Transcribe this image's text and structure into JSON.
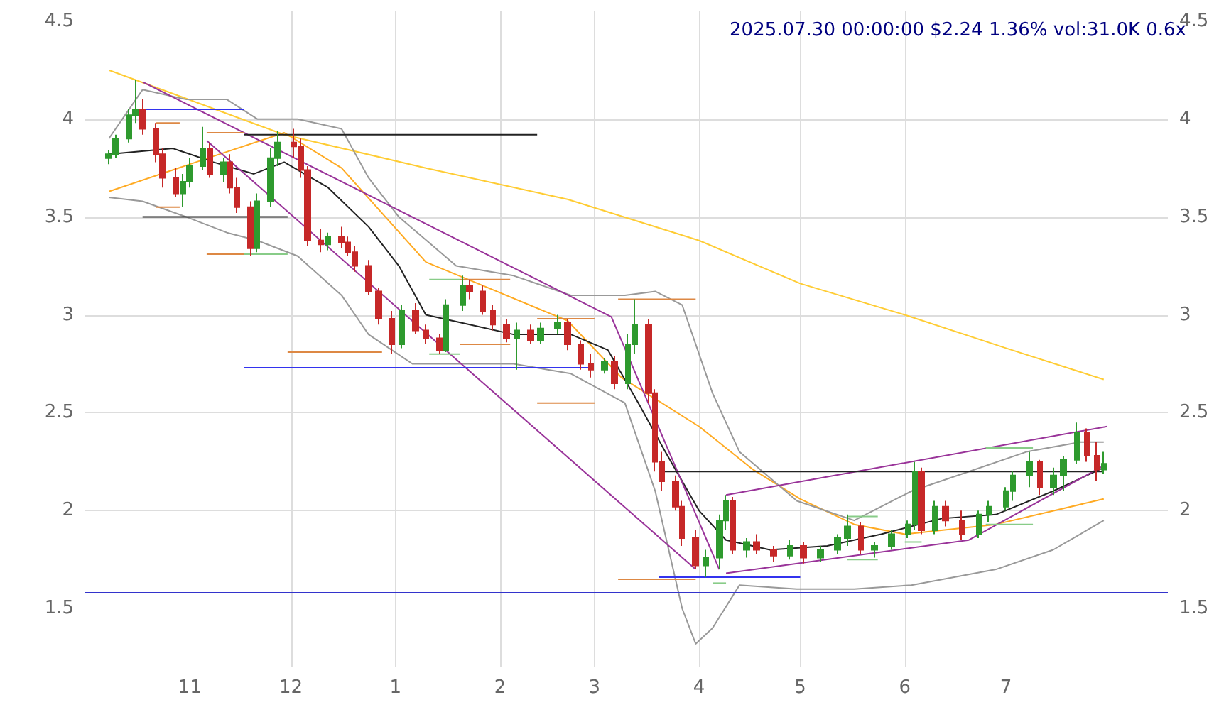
{
  "chart_data": {
    "type": "candlestick",
    "title": "2025.07.30 00:00:00 $2.24 1.36% vol:31.0K 0.6x",
    "grid": true,
    "marker": "none",
    "xlim": [
      "2024-10-01",
      "2025-08-18"
    ],
    "xticks": [
      {
        "value": "2024-11-01",
        "label": "11"
      },
      {
        "value": "2024-12-01",
        "label": "12"
      },
      {
        "value": "2025-01-01",
        "label": "1"
      },
      {
        "value": "2025-02-01",
        "label": "2"
      },
      {
        "value": "2025-03-01",
        "label": "3"
      },
      {
        "value": "2025-04-01",
        "label": "4"
      },
      {
        "value": "2025-05-01",
        "label": "5"
      },
      {
        "value": "2025-06-01",
        "label": "6"
      },
      {
        "value": "2025-07-01",
        "label": "7"
      }
    ],
    "ylim": [
      1.2,
      4.55
    ],
    "yticks": [
      1.5,
      2.0,
      2.5,
      3.0,
      3.5,
      4.0,
      4.5
    ],
    "y2lim": [
      1.2,
      4.55
    ],
    "y2ticks": [
      1.5,
      2.0,
      2.5,
      3.0,
      3.5,
      4.0,
      4.5
    ],
    "ref_lines": [
      {
        "axis": "y",
        "value": 1.58,
        "color": "#3333cc"
      }
    ],
    "series": [
      {
        "type": "line",
        "color": "#ffcc33",
        "x": [
          "2024-10-08",
          "2024-11-29",
          "2025-01-10",
          "2025-02-21",
          "2025-04-01",
          "2025-05-01",
          "2025-06-01",
          "2025-07-01",
          "2025-07-30"
        ],
        "values": [
          4.25,
          3.92,
          3.75,
          3.59,
          3.38,
          3.16,
          3.0,
          2.83,
          2.67
        ]
      },
      {
        "type": "line",
        "color": "#ffaa22",
        "x": [
          "2024-10-08",
          "2024-11-08",
          "2024-11-29",
          "2024-12-16",
          "2025-01-10",
          "2025-01-31",
          "2025-02-21",
          "2025-03-09",
          "2025-04-01",
          "2025-04-17",
          "2025-05-01",
          "2025-05-17",
          "2025-06-01",
          "2025-06-28",
          "2025-07-30"
        ],
        "values": [
          3.63,
          3.81,
          3.93,
          3.75,
          3.27,
          3.12,
          2.97,
          2.68,
          2.43,
          2.21,
          2.06,
          1.93,
          1.88,
          1.93,
          2.06
        ]
      },
      {
        "type": "line",
        "color": "#999999",
        "x": [
          "2024-10-08",
          "2024-10-18",
          "2024-10-31",
          "2024-11-12",
          "2024-11-21",
          "2024-12-03",
          "2024-12-16",
          "2024-12-24",
          "2025-01-02",
          "2025-01-19",
          "2025-02-05",
          "2025-02-22",
          "2025-03-10",
          "2025-03-19",
          "2025-03-27",
          "2025-04-05",
          "2025-04-13",
          "2025-04-30",
          "2025-05-17",
          "2025-06-03",
          "2025-06-20",
          "2025-07-07",
          "2025-07-23",
          "2025-07-30"
        ],
        "values": [
          3.9,
          4.15,
          4.1,
          4.1,
          4.0,
          4.0,
          3.95,
          3.7,
          3.5,
          3.25,
          3.2,
          3.1,
          3.1,
          3.12,
          3.05,
          2.6,
          2.3,
          2.05,
          1.95,
          2.1,
          2.2,
          2.3,
          2.35,
          2.35
        ]
      },
      {
        "type": "line",
        "color": "#999999",
        "x": [
          "2024-10-08",
          "2024-10-18",
          "2024-10-31",
          "2024-11-12",
          "2024-11-21",
          "2024-12-03",
          "2024-12-16",
          "2024-12-24",
          "2025-01-06",
          "2025-01-19",
          "2025-02-05",
          "2025-02-22",
          "2025-03-10",
          "2025-03-19",
          "2025-03-27",
          "2025-03-31",
          "2025-04-05",
          "2025-04-13",
          "2025-04-30",
          "2025-05-17",
          "2025-06-03",
          "2025-06-28",
          "2025-07-15",
          "2025-07-30"
        ],
        "values": [
          3.6,
          3.58,
          3.5,
          3.42,
          3.38,
          3.3,
          3.1,
          2.9,
          2.75,
          2.75,
          2.75,
          2.7,
          2.55,
          2.1,
          1.5,
          1.32,
          1.4,
          1.62,
          1.6,
          1.6,
          1.62,
          1.7,
          1.8,
          1.95
        ]
      },
      {
        "type": "line",
        "color": "#222222",
        "x": [
          "2024-10-08",
          "2024-10-27",
          "2024-11-08",
          "2024-11-20",
          "2024-11-29",
          "2024-12-12",
          "2024-12-24",
          "2025-01-02",
          "2025-01-10",
          "2025-01-23",
          "2025-02-05",
          "2025-02-22",
          "2025-03-05",
          "2025-03-14",
          "2025-03-22",
          "2025-04-01",
          "2025-04-09",
          "2025-04-22",
          "2025-05-09",
          "2025-05-25",
          "2025-06-12",
          "2025-06-28",
          "2025-07-15",
          "2025-07-30"
        ],
        "values": [
          3.82,
          3.85,
          3.78,
          3.72,
          3.78,
          3.65,
          3.45,
          3.25,
          3.0,
          2.95,
          2.9,
          2.9,
          2.82,
          2.55,
          2.3,
          2.0,
          1.85,
          1.8,
          1.82,
          1.88,
          1.96,
          1.98,
          2.1,
          2.22
        ]
      },
      {
        "type": "line",
        "color": "#993399",
        "x": [
          "2024-10-18",
          "2025-03-06"
        ],
        "values": [
          4.19,
          2.99
        ]
      },
      {
        "type": "line",
        "color": "#993399",
        "x": [
          "2024-11-06",
          "2025-03-31"
        ],
        "values": [
          3.89,
          1.7
        ]
      },
      {
        "type": "line",
        "color": "#993399",
        "x": [
          "2025-03-06",
          "2025-04-07"
        ],
        "values": [
          2.99,
          1.7
        ]
      },
      {
        "type": "line",
        "color": "#993399",
        "x": [
          "2025-04-09",
          "2025-07-31"
        ],
        "values": [
          2.08,
          2.43
        ]
      },
      {
        "type": "line",
        "color": "#993399",
        "x": [
          "2025-04-09",
          "2025-06-20",
          "2025-07-30"
        ],
        "values": [
          1.68,
          1.85,
          2.23
        ]
      },
      {
        "type": "line",
        "color": "#3333ee",
        "x": [
          "2024-10-18",
          "2024-11-17"
        ],
        "values": [
          4.05,
          4.05
        ]
      },
      {
        "type": "line",
        "color": "#222222",
        "x": [
          "2024-11-17",
          "2025-02-12"
        ],
        "values": [
          3.92,
          3.92
        ]
      },
      {
        "type": "line",
        "color": "#222222",
        "x": [
          "2024-10-18",
          "2024-11-30"
        ],
        "values": [
          3.5,
          3.5
        ]
      },
      {
        "type": "line",
        "color": "#3333ee",
        "x": [
          "2024-11-17",
          "2025-02-28"
        ],
        "values": [
          2.73,
          2.73
        ]
      },
      {
        "type": "line",
        "color": "#222222",
        "x": [
          "2025-03-20",
          "2025-07-30"
        ],
        "values": [
          2.2,
          2.2
        ]
      },
      {
        "type": "line",
        "color": "#3333ee",
        "x": [
          "2025-03-20",
          "2025-05-01"
        ],
        "values": [
          1.66,
          1.66
        ]
      },
      {
        "type": "line",
        "color": "#dd8844",
        "x": [
          "2024-10-22",
          "2024-10-29"
        ],
        "values": [
          3.98,
          3.98
        ]
      },
      {
        "type": "line",
        "color": "#dd8844",
        "x": [
          "2024-10-22",
          "2024-10-29"
        ],
        "values": [
          3.55,
          3.55
        ]
      },
      {
        "type": "line",
        "color": "#dd8844",
        "x": [
          "2024-11-06",
          "2024-11-17"
        ],
        "values": [
          3.93,
          3.93
        ]
      },
      {
        "type": "line",
        "color": "#dd8844",
        "x": [
          "2024-11-06",
          "2024-11-17"
        ],
        "values": [
          3.31,
          3.31
        ]
      },
      {
        "type": "line",
        "color": "#88cc88",
        "x": [
          "2024-11-17",
          "2024-11-30"
        ],
        "values": [
          3.31,
          3.31
        ]
      },
      {
        "type": "line",
        "color": "#dd8844",
        "x": [
          "2024-11-30",
          "2024-12-28"
        ],
        "values": [
          2.81,
          2.81
        ]
      },
      {
        "type": "line",
        "color": "#88cc88",
        "x": [
          "2025-01-11",
          "2025-01-20"
        ],
        "values": [
          3.18,
          3.18
        ]
      },
      {
        "type": "line",
        "color": "#88cc88",
        "x": [
          "2025-01-11",
          "2025-01-20"
        ],
        "values": [
          2.8,
          2.8
        ]
      },
      {
        "type": "line",
        "color": "#dd8844",
        "x": [
          "2025-01-20",
          "2025-02-04"
        ],
        "values": [
          3.18,
          3.18
        ]
      },
      {
        "type": "line",
        "color": "#dd8844",
        "x": [
          "2025-01-20",
          "2025-02-04"
        ],
        "values": [
          2.85,
          2.85
        ]
      },
      {
        "type": "line",
        "color": "#dd8844",
        "x": [
          "2025-02-12",
          "2025-03-01"
        ],
        "values": [
          2.98,
          2.98
        ]
      },
      {
        "type": "line",
        "color": "#dd8844",
        "x": [
          "2025-02-12",
          "2025-03-01"
        ],
        "values": [
          2.55,
          2.55
        ]
      },
      {
        "type": "line",
        "color": "#dd8844",
        "x": [
          "2025-03-08",
          "2025-03-31"
        ],
        "values": [
          3.08,
          3.08
        ]
      },
      {
        "type": "line",
        "color": "#dd8844",
        "x": [
          "2025-03-08",
          "2025-03-31"
        ],
        "values": [
          1.65,
          1.65
        ]
      },
      {
        "type": "line",
        "color": "#88cc88",
        "x": [
          "2025-04-05",
          "2025-04-09"
        ],
        "values": [
          1.63,
          1.63
        ]
      },
      {
        "type": "line",
        "color": "#88cc88",
        "x": [
          "2025-05-15",
          "2025-05-24"
        ],
        "values": [
          1.97,
          1.97
        ]
      },
      {
        "type": "line",
        "color": "#88cc88",
        "x": [
          "2025-05-15",
          "2025-05-24"
        ],
        "values": [
          1.75,
          1.75
        ]
      },
      {
        "type": "line",
        "color": "#88cc88",
        "x": [
          "2025-06-01",
          "2025-06-06"
        ],
        "values": [
          1.84,
          1.84
        ]
      },
      {
        "type": "line",
        "color": "#88cc88",
        "x": [
          "2025-06-25",
          "2025-07-09"
        ],
        "values": [
          2.32,
          2.32
        ]
      },
      {
        "type": "line",
        "color": "#88cc88",
        "x": [
          "2025-06-25",
          "2025-07-09"
        ],
        "values": [
          1.93,
          1.93
        ]
      },
      {
        "x": [
          "2024-10-08",
          "2024-10-10",
          "2024-10-14",
          "2024-10-16",
          "2024-10-18",
          "2024-10-22",
          "2024-10-24",
          "2024-10-28",
          "2024-10-30",
          "2024-11-01",
          "2024-11-05",
          "2024-11-07",
          "2024-11-11",
          "2024-11-13",
          "2024-11-15",
          "2024-11-19",
          "2024-11-21",
          "2024-11-25",
          "2024-11-27",
          "2024-12-02",
          "2024-12-04",
          "2024-12-06",
          "2024-12-10",
          "2024-12-12",
          "2024-12-16",
          "2024-12-18",
          "2024-12-20",
          "2024-12-24",
          "2024-12-27",
          "2024-12-31",
          "2025-01-03",
          "2025-01-07",
          "2025-01-10",
          "2025-01-14",
          "2025-01-16",
          "2025-01-21",
          "2025-01-23",
          "2025-01-27",
          "2025-01-30",
          "2025-02-03",
          "2025-02-06",
          "2025-02-10",
          "2025-02-13",
          "2025-02-18",
          "2025-02-21",
          "2025-02-25",
          "2025-02-28",
          "2025-03-04",
          "2025-03-07",
          "2025-03-11",
          "2025-03-13",
          "2025-03-17",
          "2025-03-19",
          "2025-03-21",
          "2025-03-25",
          "2025-03-27",
          "2025-03-31",
          "2025-04-03",
          "2025-04-07",
          "2025-04-09",
          "2025-04-11",
          "2025-04-15",
          "2025-04-18",
          "2025-04-23",
          "2025-04-28",
          "2025-05-02",
          "2025-05-07",
          "2025-05-12",
          "2025-05-15",
          "2025-05-19",
          "2025-05-23",
          "2025-05-28",
          "2025-06-02",
          "2025-06-04",
          "2025-06-06",
          "2025-06-10",
          "2025-06-13",
          "2025-06-18",
          "2025-06-23",
          "2025-06-26",
          "2025-07-01",
          "2025-07-03",
          "2025-07-08",
          "2025-07-11",
          "2025-07-15",
          "2025-07-18",
          "2025-07-22",
          "2025-07-25",
          "2025-07-28",
          "2025-07-30"
        ],
        "ohlc": [
          [
            3.8,
            3.84,
            3.77,
            3.82
          ],
          [
            3.82,
            3.92,
            3.8,
            3.9
          ],
          [
            3.9,
            4.05,
            3.88,
            4.02
          ],
          [
            4.02,
            4.2,
            3.98,
            4.05
          ],
          [
            4.05,
            4.1,
            3.92,
            3.95
          ],
          [
            3.95,
            3.98,
            3.78,
            3.82
          ],
          [
            3.82,
            3.85,
            3.65,
            3.7
          ],
          [
            3.7,
            3.75,
            3.6,
            3.62
          ],
          [
            3.62,
            3.72,
            3.55,
            3.68
          ],
          [
            3.68,
            3.8,
            3.65,
            3.76
          ],
          [
            3.76,
            3.96,
            3.74,
            3.85
          ],
          [
            3.85,
            3.88,
            3.7,
            3.72
          ],
          [
            3.72,
            3.8,
            3.68,
            3.78
          ],
          [
            3.78,
            3.82,
            3.62,
            3.65
          ],
          [
            3.65,
            3.7,
            3.52,
            3.55
          ],
          [
            3.55,
            3.58,
            3.3,
            3.34
          ],
          [
            3.34,
            3.62,
            3.32,
            3.58
          ],
          [
            3.58,
            3.85,
            3.55,
            3.8
          ],
          [
            3.8,
            3.94,
            3.76,
            3.88
          ],
          [
            3.88,
            3.95,
            3.8,
            3.86
          ],
          [
            3.86,
            3.9,
            3.7,
            3.74
          ],
          [
            3.74,
            3.76,
            3.35,
            3.38
          ],
          [
            3.38,
            3.44,
            3.32,
            3.36
          ],
          [
            3.36,
            3.42,
            3.33,
            3.4
          ],
          [
            3.4,
            3.45,
            3.34,
            3.37
          ],
          [
            3.37,
            3.4,
            3.3,
            3.32
          ],
          [
            3.32,
            3.35,
            3.22,
            3.25
          ],
          [
            3.25,
            3.28,
            3.1,
            3.12
          ],
          [
            3.12,
            3.14,
            2.95,
            2.98
          ],
          [
            2.98,
            3.02,
            2.8,
            2.85
          ],
          [
            2.85,
            3.05,
            2.83,
            3.02
          ],
          [
            3.02,
            3.06,
            2.9,
            2.92
          ],
          [
            2.92,
            2.95,
            2.85,
            2.88
          ],
          [
            2.88,
            2.9,
            2.8,
            2.82
          ],
          [
            2.82,
            3.08,
            2.81,
            3.05
          ],
          [
            3.05,
            3.2,
            3.02,
            3.15
          ],
          [
            3.15,
            3.18,
            3.08,
            3.12
          ],
          [
            3.12,
            3.15,
            3.0,
            3.02
          ],
          [
            3.02,
            3.05,
            2.92,
            2.95
          ],
          [
            2.95,
            2.98,
            2.86,
            2.88
          ],
          [
            2.88,
            2.96,
            2.72,
            2.92
          ],
          [
            2.92,
            2.95,
            2.85,
            2.87
          ],
          [
            2.87,
            2.96,
            2.85,
            2.93
          ],
          [
            2.93,
            3.0,
            2.9,
            2.96
          ],
          [
            2.96,
            2.98,
            2.82,
            2.85
          ],
          [
            2.85,
            2.87,
            2.72,
            2.75
          ],
          [
            2.75,
            2.8,
            2.68,
            2.72
          ],
          [
            2.72,
            2.78,
            2.7,
            2.76
          ],
          [
            2.76,
            2.79,
            2.62,
            2.65
          ],
          [
            2.65,
            2.9,
            2.62,
            2.85
          ],
          [
            2.85,
            3.08,
            2.8,
            2.95
          ],
          [
            2.95,
            2.98,
            2.55,
            2.6
          ],
          [
            2.6,
            2.62,
            2.2,
            2.25
          ],
          [
            2.25,
            2.3,
            2.1,
            2.15
          ],
          [
            2.15,
            2.18,
            2.0,
            2.02
          ],
          [
            2.02,
            2.05,
            1.82,
            1.86
          ],
          [
            1.86,
            1.9,
            1.7,
            1.72
          ],
          [
            1.72,
            1.8,
            1.66,
            1.76
          ],
          [
            1.76,
            1.98,
            1.7,
            1.95
          ],
          [
            1.95,
            2.08,
            1.9,
            2.05
          ],
          [
            2.05,
            2.07,
            1.78,
            1.8
          ],
          [
            1.8,
            1.86,
            1.76,
            1.84
          ],
          [
            1.84,
            1.88,
            1.78,
            1.8
          ],
          [
            1.8,
            1.82,
            1.74,
            1.77
          ],
          [
            1.77,
            1.85,
            1.75,
            1.82
          ],
          [
            1.82,
            1.84,
            1.73,
            1.76
          ],
          [
            1.76,
            1.82,
            1.74,
            1.8
          ],
          [
            1.8,
            1.88,
            1.78,
            1.86
          ],
          [
            1.86,
            1.98,
            1.82,
            1.92
          ],
          [
            1.92,
            1.94,
            1.78,
            1.8
          ],
          [
            1.8,
            1.84,
            1.76,
            1.82
          ],
          [
            1.82,
            1.9,
            1.8,
            1.88
          ],
          [
            1.88,
            1.95,
            1.86,
            1.93
          ],
          [
            1.93,
            2.25,
            1.9,
            2.2
          ],
          [
            2.2,
            2.22,
            1.88,
            1.9
          ],
          [
            1.9,
            2.05,
            1.88,
            2.02
          ],
          [
            2.02,
            2.05,
            1.92,
            1.95
          ],
          [
            1.95,
            2.0,
            1.85,
            1.88
          ],
          [
            1.88,
            2.0,
            1.86,
            1.98
          ],
          [
            1.98,
            2.05,
            1.94,
            2.02
          ],
          [
            2.02,
            2.12,
            2.0,
            2.1
          ],
          [
            2.1,
            2.2,
            2.05,
            2.18
          ],
          [
            2.18,
            2.3,
            2.12,
            2.25
          ],
          [
            2.25,
            2.26,
            2.08,
            2.12
          ],
          [
            2.12,
            2.22,
            2.08,
            2.18
          ],
          [
            2.18,
            2.28,
            2.1,
            2.26
          ],
          [
            2.26,
            2.45,
            2.24,
            2.4
          ],
          [
            2.4,
            2.42,
            2.25,
            2.28
          ],
          [
            2.28,
            2.35,
            2.15,
            2.21
          ],
          [
            2.21,
            2.3,
            2.19,
            2.24
          ]
        ],
        "colors": [
          "#2e9a2e",
          "#2e9a2e",
          "#2e9a2e",
          "#2e9a2e",
          "#c62828",
          "#c62828",
          "#c62828",
          "#c62828",
          "#2e9a2e",
          "#2e9a2e",
          "#2e9a2e",
          "#c62828",
          "#2e9a2e",
          "#c62828",
          "#c62828",
          "#c62828",
          "#2e9a2e",
          "#2e9a2e",
          "#2e9a2e",
          "#c62828",
          "#c62828",
          "#c62828",
          "#c62828",
          "#2e9a2e",
          "#c62828",
          "#c62828",
          "#c62828",
          "#c62828",
          "#c62828",
          "#c62828",
          "#2e9a2e",
          "#c62828",
          "#c62828",
          "#c62828",
          "#2e9a2e",
          "#2e9a2e",
          "#c62828",
          "#c62828",
          "#c62828",
          "#c62828",
          "#2e9a2e",
          "#c62828",
          "#2e9a2e",
          "#2e9a2e",
          "#c62828",
          "#c62828",
          "#c62828",
          "#2e9a2e",
          "#c62828",
          "#2e9a2e",
          "#2e9a2e",
          "#c62828",
          "#c62828",
          "#c62828",
          "#c62828",
          "#c62828",
          "#c62828",
          "#2e9a2e",
          "#2e9a2e",
          "#2e9a2e",
          "#c62828",
          "#2e9a2e",
          "#c62828",
          "#c62828",
          "#2e9a2e",
          "#c62828",
          "#2e9a2e",
          "#2e9a2e",
          "#2e9a2e",
          "#c62828",
          "#2e9a2e",
          "#2e9a2e",
          "#2e9a2e",
          "#2e9a2e",
          "#c62828",
          "#2e9a2e",
          "#c62828",
          "#c62828",
          "#2e9a2e",
          "#2e9a2e",
          "#2e9a2e",
          "#2e9a2e",
          "#2e9a2e",
          "#c62828",
          "#2e9a2e",
          "#2e9a2e",
          "#2e9a2e",
          "#c62828",
          "#c62828",
          "#2e9a2e"
        ]
      }
    ]
  }
}
